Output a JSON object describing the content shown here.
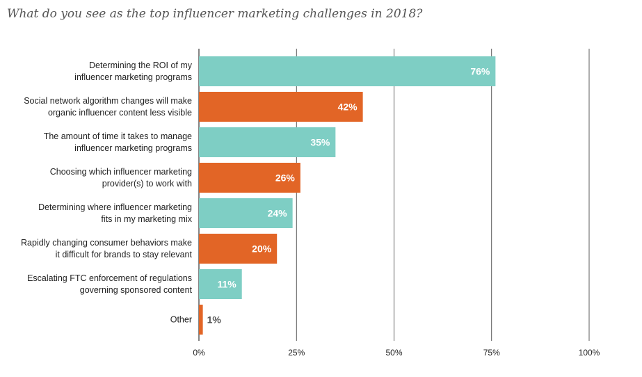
{
  "title": "What do you see as the top influencer marketing challenges in 2018?",
  "colors": {
    "teal": "#7ecec4",
    "orange": "#e26526",
    "grid": "#333333"
  },
  "chart_data": {
    "type": "bar",
    "orientation": "horizontal",
    "title": "What do you see as the top influencer marketing challenges in 2018?",
    "categories": [
      [
        "Determining the ROI of my",
        "influencer marketing programs"
      ],
      [
        "Social network algorithm changes will make",
        "organic influencer content less visible"
      ],
      [
        "The amount of time it takes to manage",
        "influencer marketing programs"
      ],
      [
        "Choosing which influencer marketing",
        "provider(s) to work with"
      ],
      [
        "Determining where influencer marketing",
        "fits in my marketing mix"
      ],
      [
        "Rapidly changing consumer behaviors make",
        "it difficult for brands to stay relevant"
      ],
      [
        "Escalating FTC enforcement of regulations",
        "governing sponsored content"
      ],
      [
        "Other"
      ]
    ],
    "values": [
      76,
      42,
      35,
      26,
      24,
      20,
      11,
      1
    ],
    "value_labels": [
      "76%",
      "42%",
      "35%",
      "26%",
      "24%",
      "20%",
      "11%",
      "1%"
    ],
    "bar_colors": [
      "teal",
      "orange",
      "teal",
      "orange",
      "teal",
      "orange",
      "teal",
      "orange"
    ],
    "xlim": [
      0,
      100
    ],
    "xticks": [
      0,
      25,
      50,
      75,
      100
    ],
    "xtick_labels": [
      "0%",
      "25%",
      "50%",
      "75%",
      "100%"
    ],
    "xlabel": "",
    "ylabel": "",
    "grid": true,
    "legend": "none"
  }
}
